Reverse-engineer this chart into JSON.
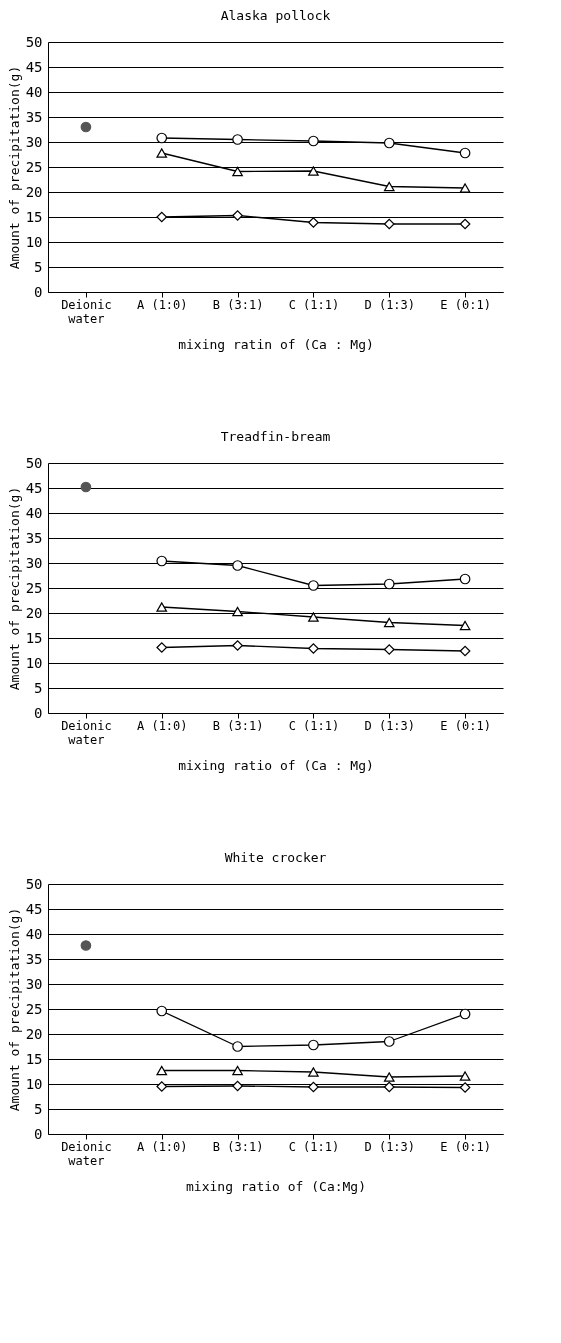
{
  "chart_data": [
    {
      "type": "line",
      "title": "Alaska pollock",
      "xlabel": "mixing ratin of (Ca : Mg)",
      "ylabel": "Amount of precipitation(g)",
      "categories": [
        "Deionic water",
        "A (1:0)",
        "B (3:1)",
        "C (1:1)",
        "D (1:3)",
        "E (0:1)"
      ],
      "ylim": [
        0,
        50
      ],
      "yticks": [
        0,
        5,
        10,
        15,
        20,
        25,
        30,
        35,
        40,
        45,
        50
      ],
      "grid": "y",
      "series": [
        {
          "type": "scatter",
          "color": "#555555",
          "marker": "circle",
          "values": [
            33.0,
            null,
            null,
            null,
            null,
            null
          ]
        },
        {
          "color": "#000000",
          "marker": "circle",
          "values": [
            null,
            30.8,
            30.5,
            30.2,
            29.8,
            27.8
          ]
        },
        {
          "color": "#000000",
          "marker": "triangle",
          "values": [
            null,
            27.8,
            24.1,
            24.2,
            21.1,
            20.8
          ]
        },
        {
          "color": "#000000",
          "marker": "diamond",
          "values": [
            null,
            15.0,
            15.3,
            13.9,
            13.6,
            13.6
          ]
        }
      ]
    },
    {
      "type": "line",
      "title": "Treadfin-bream",
      "xlabel": "mixing ratio of (Ca : Mg)",
      "ylabel": "Amount of precipitation(g)",
      "categories": [
        "Deionic water",
        "A (1:0)",
        "B (3:1)",
        "C (1:1)",
        "D (1:3)",
        "E (0:1)"
      ],
      "ylim": [
        0,
        50
      ],
      "yticks": [
        0,
        5,
        10,
        15,
        20,
        25,
        30,
        35,
        40,
        45,
        50
      ],
      "grid": "y",
      "series": [
        {
          "type": "scatter",
          "color": "#555555",
          "marker": "circle",
          "values": [
            45.2,
            null,
            null,
            null,
            null,
            null
          ]
        },
        {
          "color": "#000000",
          "marker": "circle",
          "values": [
            null,
            30.4,
            29.5,
            25.5,
            25.8,
            26.8
          ]
        },
        {
          "color": "#000000",
          "marker": "triangle",
          "values": [
            null,
            21.2,
            20.3,
            19.2,
            18.1,
            17.5
          ]
        },
        {
          "color": "#000000",
          "marker": "diamond",
          "values": [
            null,
            13.1,
            13.5,
            12.9,
            12.7,
            12.4
          ]
        }
      ]
    },
    {
      "type": "line",
      "title": "White crocker",
      "xlabel": "mixing ratio of (Ca:Mg)",
      "ylabel": "Amount of precipitation(g)",
      "categories": [
        "Deionic water",
        "A (1:0)",
        "B (3:1)",
        "C (1:1)",
        "D (1:3)",
        "E (0:1)"
      ],
      "ylim": [
        0,
        50
      ],
      "yticks": [
        0,
        5,
        10,
        15,
        20,
        25,
        30,
        35,
        40,
        45,
        50
      ],
      "grid": "y",
      "series": [
        {
          "type": "scatter",
          "color": "#555555",
          "marker": "circle",
          "values": [
            37.7,
            null,
            null,
            null,
            null,
            null
          ]
        },
        {
          "color": "#000000",
          "marker": "circle",
          "values": [
            null,
            24.6,
            17.5,
            17.8,
            18.5,
            24.0
          ]
        },
        {
          "color": "#000000",
          "marker": "triangle",
          "values": [
            null,
            12.7,
            12.7,
            12.4,
            11.4,
            11.6
          ]
        },
        {
          "color": "#000000",
          "marker": "diamond",
          "values": [
            null,
            9.5,
            9.6,
            9.4,
            9.4,
            9.3
          ]
        }
      ]
    }
  ]
}
